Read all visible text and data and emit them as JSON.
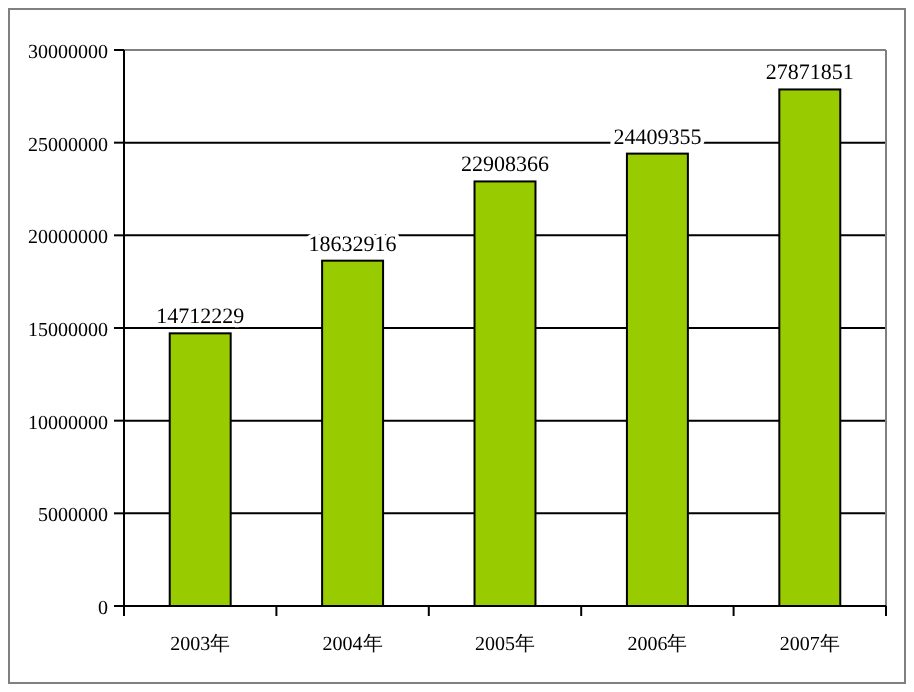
{
  "chart_data": {
    "type": "bar",
    "categories": [
      "2003年",
      "2004年",
      "2005年",
      "2006年",
      "2007年"
    ],
    "values": [
      14712229,
      18632916,
      22908366,
      24409355,
      27871851
    ],
    "color": "#99cc00",
    "ylim": [
      0,
      30000000
    ],
    "yticks": [
      0,
      5000000,
      10000000,
      15000000,
      20000000,
      25000000,
      30000000
    ],
    "grid": "y",
    "data_labels": true
  }
}
